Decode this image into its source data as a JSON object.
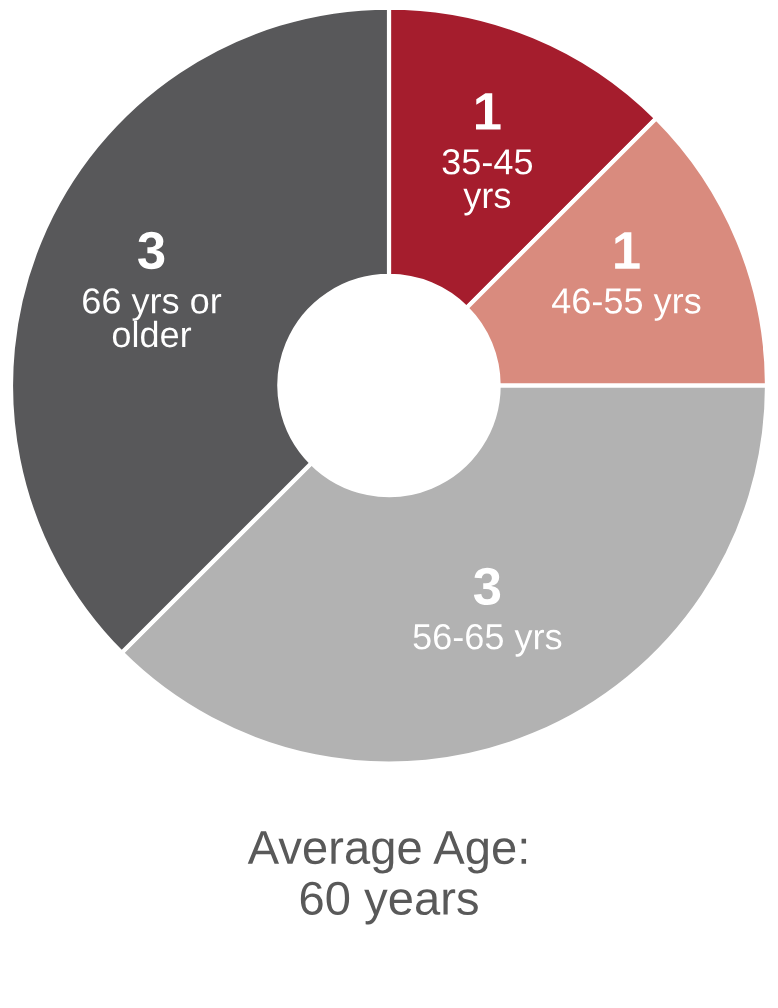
{
  "chart_data": {
    "type": "donut",
    "categories": [
      "35-45\nyrs",
      "46-55 yrs",
      "56-65 yrs",
      "66 yrs or\nolder"
    ],
    "values": [
      1,
      1,
      3,
      3
    ],
    "colors": [
      "#a51d2d",
      "#d98b7e",
      "#b2b2b2",
      "#58585a"
    ],
    "data_labels": true,
    "annotations": [
      "Average Age:\n60 years"
    ]
  }
}
